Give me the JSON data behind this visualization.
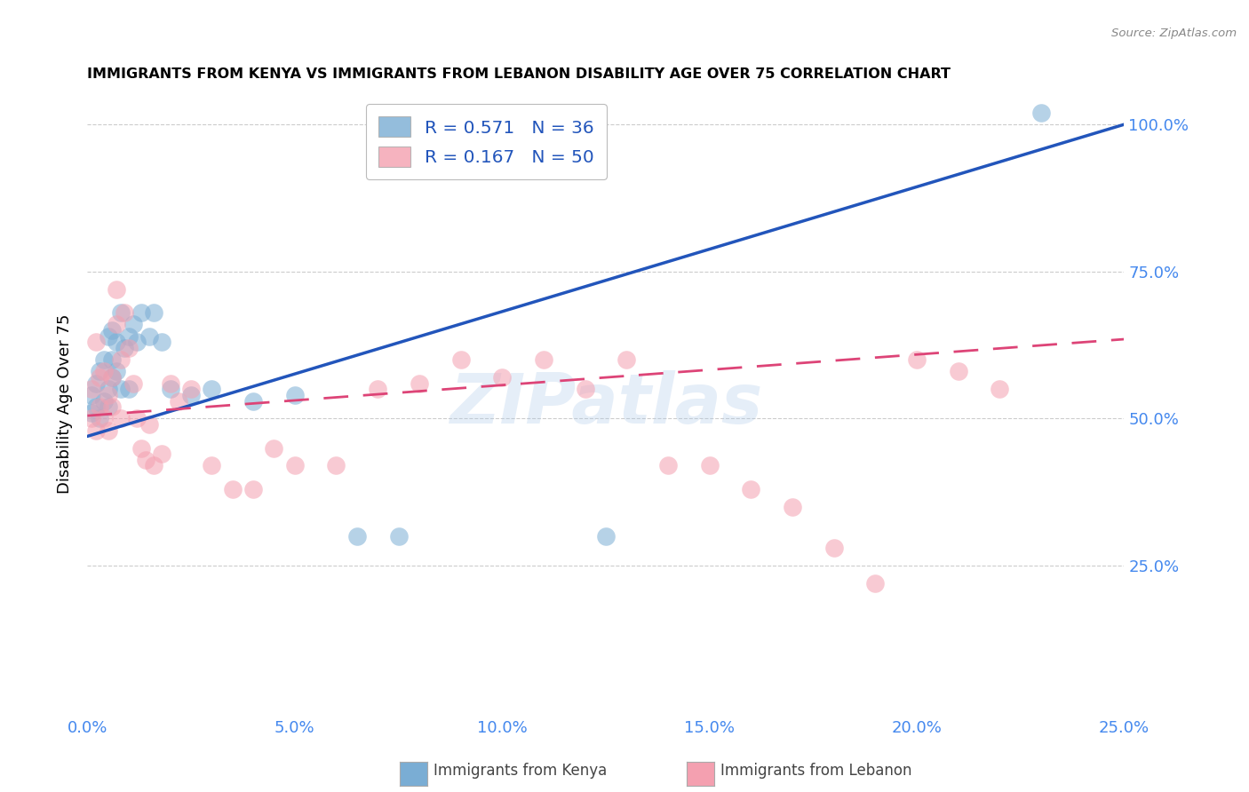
{
  "title": "IMMIGRANTS FROM KENYA VS IMMIGRANTS FROM LEBANON DISABILITY AGE OVER 75 CORRELATION CHART",
  "source": "Source: ZipAtlas.com",
  "ylabel": "Disability Age Over 75",
  "xlabel": "",
  "watermark": "ZIPatlas",
  "kenya_R": 0.571,
  "kenya_N": 36,
  "lebanon_R": 0.167,
  "lebanon_N": 50,
  "kenya_color": "#7aadd4",
  "lebanon_color": "#f4a0b0",
  "kenya_line_color": "#2255bb",
  "lebanon_line_color": "#dd4477",
  "xlim": [
    0.0,
    0.25
  ],
  "ylim": [
    0.0,
    1.05
  ],
  "yticks": [
    0.25,
    0.5,
    0.75,
    1.0
  ],
  "xticks": [
    0.0,
    0.05,
    0.1,
    0.15,
    0.2,
    0.25
  ],
  "background_color": "#ffffff",
  "grid_color": "#cccccc",
  "tick_color": "#4488ee",
  "legend_R_color": "#2255bb",
  "legend_N_color": "#22aacc",
  "kenya_line_intercept": 0.47,
  "kenya_line_slope": 2.12,
  "lebanon_line_intercept": 0.505,
  "lebanon_line_slope": 0.52,
  "kenya_x": [
    0.001,
    0.001,
    0.002,
    0.002,
    0.003,
    0.003,
    0.004,
    0.004,
    0.005,
    0.005,
    0.005,
    0.006,
    0.006,
    0.006,
    0.007,
    0.007,
    0.008,
    0.008,
    0.009,
    0.01,
    0.01,
    0.011,
    0.012,
    0.013,
    0.015,
    0.016,
    0.018,
    0.02,
    0.025,
    0.03,
    0.04,
    0.05,
    0.065,
    0.075,
    0.125,
    0.23
  ],
  "kenya_y": [
    0.51,
    0.54,
    0.52,
    0.56,
    0.5,
    0.58,
    0.53,
    0.6,
    0.52,
    0.55,
    0.64,
    0.57,
    0.6,
    0.65,
    0.58,
    0.63,
    0.55,
    0.68,
    0.62,
    0.64,
    0.55,
    0.66,
    0.63,
    0.68,
    0.64,
    0.68,
    0.63,
    0.55,
    0.54,
    0.55,
    0.53,
    0.54,
    0.3,
    0.3,
    0.3,
    1.02
  ],
  "lebanon_x": [
    0.001,
    0.001,
    0.002,
    0.002,
    0.003,
    0.003,
    0.004,
    0.004,
    0.005,
    0.005,
    0.006,
    0.006,
    0.007,
    0.007,
    0.008,
    0.008,
    0.009,
    0.01,
    0.011,
    0.012,
    0.013,
    0.014,
    0.015,
    0.016,
    0.018,
    0.02,
    0.022,
    0.025,
    0.03,
    0.035,
    0.04,
    0.045,
    0.05,
    0.06,
    0.07,
    0.08,
    0.09,
    0.1,
    0.11,
    0.12,
    0.13,
    0.14,
    0.15,
    0.16,
    0.17,
    0.18,
    0.19,
    0.2,
    0.21,
    0.22
  ],
  "lebanon_y": [
    0.5,
    0.55,
    0.48,
    0.63,
    0.52,
    0.57,
    0.58,
    0.5,
    0.54,
    0.48,
    0.57,
    0.52,
    0.66,
    0.72,
    0.6,
    0.5,
    0.68,
    0.62,
    0.56,
    0.5,
    0.45,
    0.43,
    0.49,
    0.42,
    0.44,
    0.56,
    0.53,
    0.55,
    0.42,
    0.38,
    0.38,
    0.45,
    0.42,
    0.42,
    0.55,
    0.56,
    0.6,
    0.57,
    0.6,
    0.55,
    0.6,
    0.42,
    0.42,
    0.38,
    0.35,
    0.28,
    0.22,
    0.6,
    0.58,
    0.55
  ]
}
